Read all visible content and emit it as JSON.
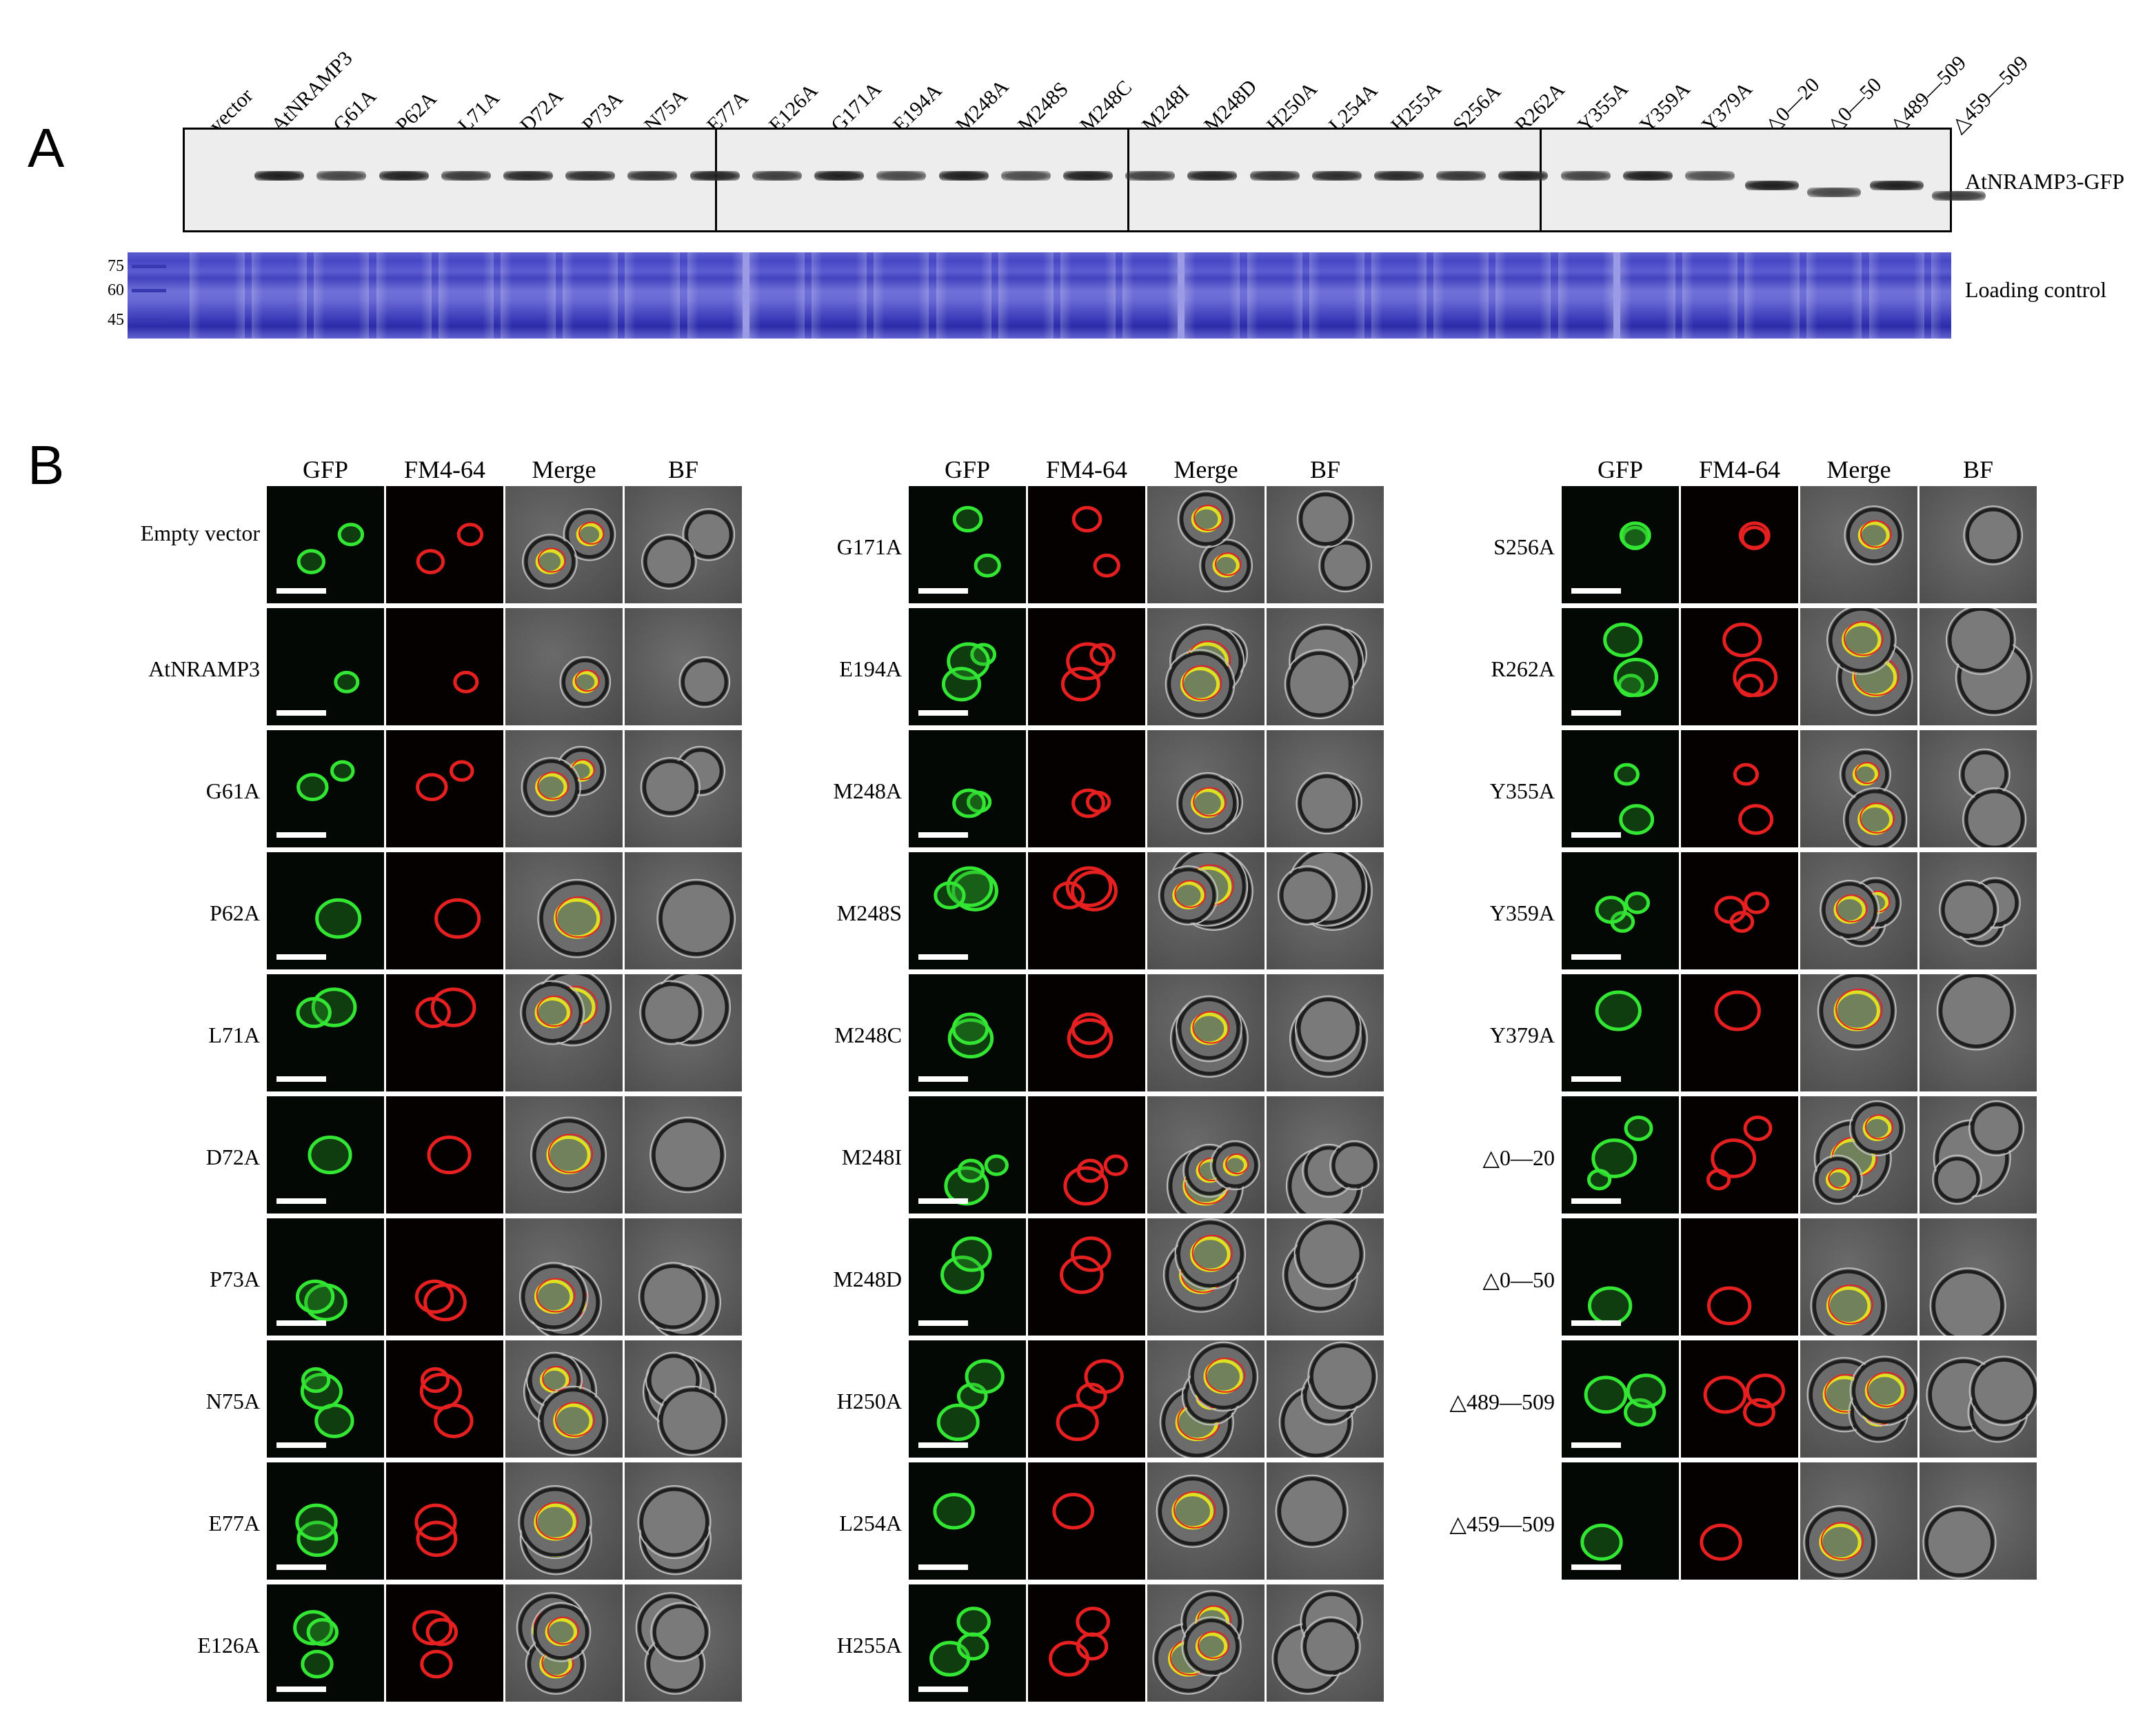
{
  "panel_a": {
    "letter": "A",
    "lanes": [
      "vector",
      "AtNRAMP3",
      "G61A",
      "P62A",
      "L71A",
      "D72A",
      "P73A",
      "N75A",
      "E77A",
      "E126A",
      "G171A",
      "E194A",
      "M248A",
      "M248S",
      "M248C",
      "M248I",
      "M248D",
      "H250A",
      "L254A",
      "H255A",
      "S256A",
      "R262A",
      "Y355A",
      "Y359A",
      "Y379A",
      "△0—20",
      "△0—50",
      "△489—509",
      "△459—509"
    ],
    "blot_label": "AtNRAMP3-GFP",
    "loading_label": "Loading control",
    "mw_markers": [
      "75",
      "60",
      "45"
    ]
  },
  "panel_b": {
    "letter": "B",
    "column_headers": [
      "GFP",
      "FM4-64",
      "Merge",
      "BF"
    ],
    "groups": [
      {
        "rows": [
          "Empty vector",
          "AtNRAMP3",
          "G61A",
          "P62A",
          "L71A",
          "D72A",
          "P73A",
          "N75A",
          "E77A",
          "E126A"
        ]
      },
      {
        "rows": [
          "G171A",
          "E194A",
          "M248A",
          "M248S",
          "M248C",
          "M248I",
          "M248D",
          "H250A",
          "L254A",
          "H255A"
        ]
      },
      {
        "rows": [
          "S256A",
          "R262A",
          "Y355A",
          "Y359A",
          "Y379A",
          "△0—20",
          "△0—50",
          "△489—509",
          "△459—509"
        ]
      }
    ]
  },
  "colors": {
    "gfp": "#33e633",
    "fm464": "#e62020",
    "merge": "#e0e020",
    "ladder": "#3838b0",
    "gel": "#4b4bc4"
  }
}
